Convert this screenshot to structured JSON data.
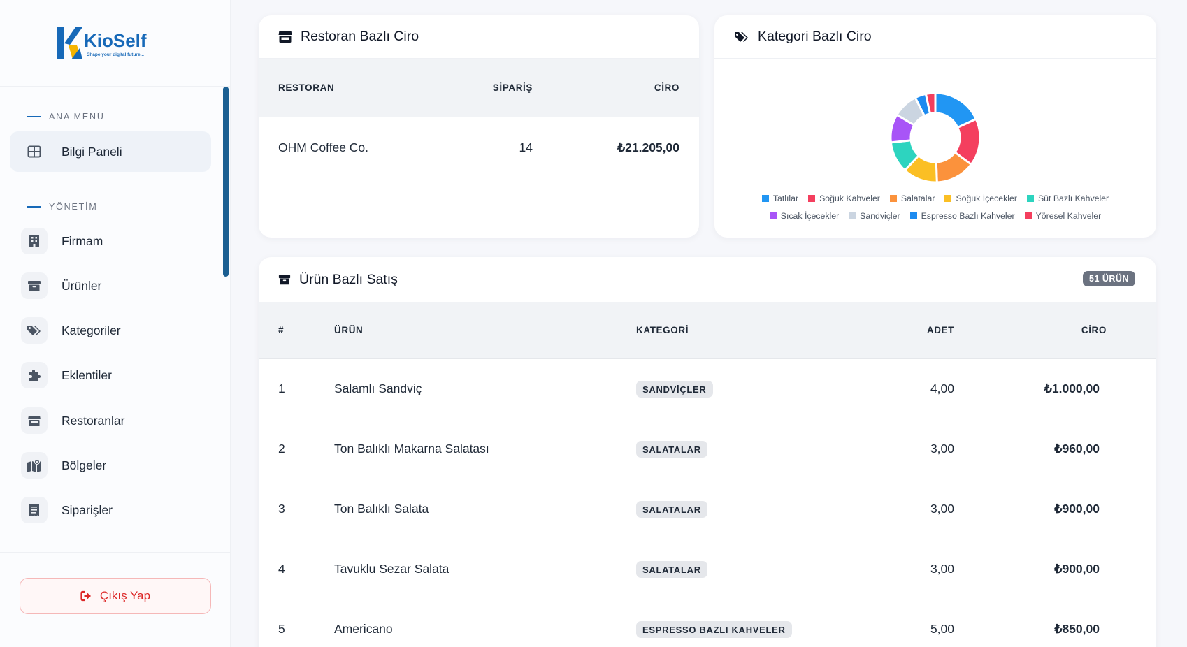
{
  "sidebar": {
    "logo": {
      "brand": "KioSelf",
      "tagline": "Shape your digital future..."
    },
    "sections": [
      {
        "title": "ANA MENÜ"
      },
      {
        "title": "YÖNETİM"
      }
    ],
    "items": [
      {
        "label": "Bilgi Paneli",
        "icon": "dashboard-icon",
        "active": true
      },
      {
        "label": "Firmam",
        "icon": "building-icon"
      },
      {
        "label": "Ürünler",
        "icon": "box-icon"
      },
      {
        "label": "Kategoriler",
        "icon": "tags-icon"
      },
      {
        "label": "Eklentiler",
        "icon": "puzzle-icon"
      },
      {
        "label": "Restoranlar",
        "icon": "store-icon"
      },
      {
        "label": "Bölgeler",
        "icon": "map-icon"
      },
      {
        "label": "Siparişler",
        "icon": "receipt-icon"
      }
    ],
    "logout_label": "Çıkış Yap"
  },
  "restaurant_card": {
    "title": "Restoran Bazlı Ciro",
    "columns": [
      "RESTORAN",
      "SİPARİŞ",
      "CİRO"
    ],
    "rows": [
      {
        "name": "OHM Coffee Co.",
        "orders": "14",
        "revenue": "₺21.205,00"
      }
    ]
  },
  "category_card": {
    "title": "Kategori Bazlı Ciro"
  },
  "chart_data": {
    "type": "pie",
    "title": "Kategori Bazlı Ciro",
    "legend_position": "bottom",
    "series": [
      {
        "name": "Tatlılar",
        "value": 16,
        "color": "#2196f3"
      },
      {
        "name": "Soğuk Kahveler",
        "value": 15,
        "color": "#f43f5e"
      },
      {
        "name": "Salatalar",
        "value": 12.5,
        "color": "#fb923c"
      },
      {
        "name": "Soğuk İçecekler",
        "value": 11,
        "color": "#fbbf24"
      },
      {
        "name": "Süt Bazlı Kahveler",
        "value": 10,
        "color": "#2dd4bf"
      },
      {
        "name": "Sıcak İçecekler",
        "value": 9,
        "color": "#a855f7"
      },
      {
        "name": "Sandviçler",
        "value": 8,
        "color": "#cbd5e1"
      },
      {
        "name": "Espresso Bazlı Kahveler",
        "value": 3.5,
        "color": "#1d8bf0"
      },
      {
        "name": "Yöresel Kahveler",
        "value": 3,
        "color": "#f43f5e"
      }
    ]
  },
  "product_card": {
    "title": "Ürün Bazlı Satış",
    "count_badge": "51 ÜRÜN",
    "columns": [
      "#",
      "ÜRÜN",
      "KATEGORİ",
      "ADET",
      "CİRO"
    ],
    "rows": [
      {
        "no": "1",
        "product": "Salamlı Sandviç",
        "category": "SANDVİÇLER",
        "qty": "4,00",
        "revenue": "₺1.000,00"
      },
      {
        "no": "2",
        "product": "Ton Balıklı Makarna Salatası",
        "category": "SALATALAR",
        "qty": "3,00",
        "revenue": "₺960,00"
      },
      {
        "no": "3",
        "product": "Ton Balıklı Salata",
        "category": "SALATALAR",
        "qty": "3,00",
        "revenue": "₺900,00"
      },
      {
        "no": "4",
        "product": "Tavuklu Sezar Salata",
        "category": "SALATALAR",
        "qty": "3,00",
        "revenue": "₺900,00"
      },
      {
        "no": "5",
        "product": "Americano",
        "category": "ESPRESSO BAZLI KAHVELER",
        "qty": "5,00",
        "revenue": "₺850,00"
      }
    ]
  }
}
